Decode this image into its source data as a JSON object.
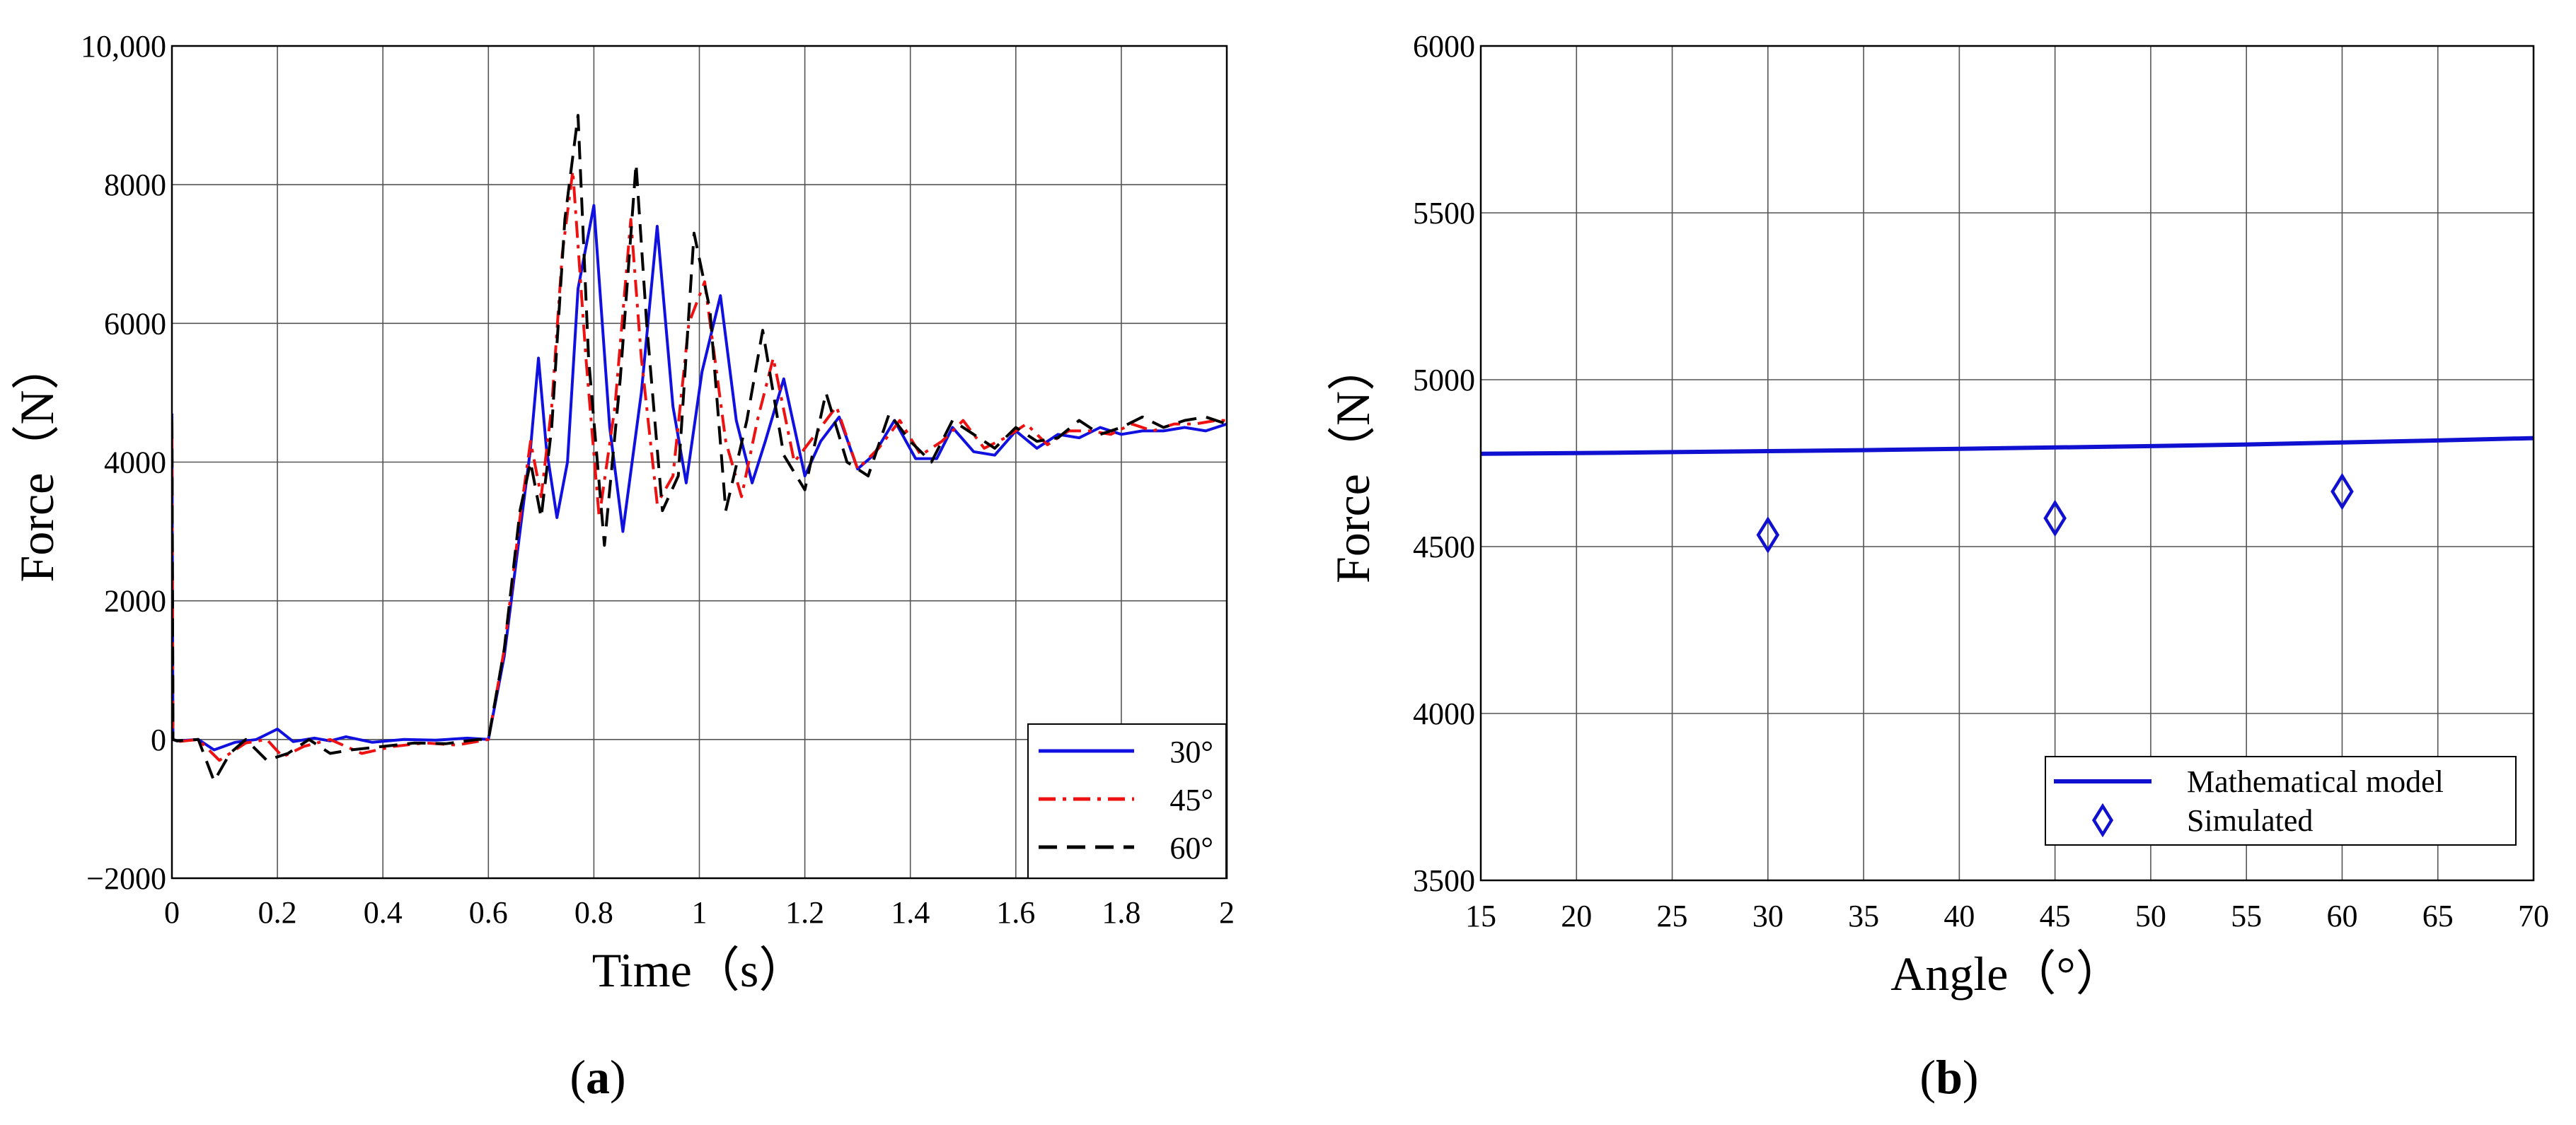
{
  "panel_labels": [
    {
      "open": "(",
      "letter": "a",
      "close": ")"
    },
    {
      "open": "(",
      "letter": "b",
      "close": ")"
    }
  ],
  "chart_data": [
    {
      "type": "line",
      "xlabel": "Time（s）",
      "ylabel": "Force（N）",
      "xlim": [
        0,
        2
      ],
      "ylim": [
        -2000,
        10000
      ],
      "x_ticks": [
        0,
        0.2,
        0.4,
        0.6,
        0.8,
        1,
        1.2,
        1.4,
        1.6,
        1.8,
        2
      ],
      "x_tick_labels": [
        "0",
        "0.2",
        "0.4",
        "0.6",
        "0.8",
        "1",
        "1.2",
        "1.4",
        "1.6",
        "1.8",
        "2"
      ],
      "y_ticks": [
        -2000,
        0,
        2000,
        4000,
        6000,
        8000,
        10000
      ],
      "y_tick_labels": [
        "−2000",
        "0",
        "2000",
        "4000",
        "6000",
        "8000",
        "10,000"
      ],
      "grid": true,
      "legend_position": "bottom-right",
      "series": [
        {
          "name": "30°",
          "color": "#1010e0",
          "dash": "solid",
          "x": [
            0,
            0.002,
            0.01,
            0.05,
            0.08,
            0.12,
            0.16,
            0.2,
            0.23,
            0.27,
            0.3,
            0.33,
            0.38,
            0.44,
            0.5,
            0.56,
            0.6,
            0.63,
            0.66,
            0.68,
            0.695,
            0.71,
            0.73,
            0.75,
            0.77,
            0.8,
            0.83,
            0.855,
            0.89,
            0.92,
            0.95,
            0.975,
            1.005,
            1.04,
            1.07,
            1.1,
            1.125,
            1.16,
            1.2,
            1.23,
            1.265,
            1.3,
            1.33,
            1.37,
            1.41,
            1.45,
            1.48,
            1.52,
            1.56,
            1.6,
            1.64,
            1.68,
            1.72,
            1.76,
            1.8,
            1.84,
            1.88,
            1.92,
            1.96,
            2.0
          ],
          "y": [
            4700,
            0,
            -20,
            0,
            -150,
            -40,
            0,
            150,
            -30,
            20,
            -20,
            40,
            -40,
            0,
            -10,
            20,
            0,
            1200,
            3000,
            4200,
            5500,
            4200,
            3200,
            4000,
            6500,
            7700,
            4500,
            3000,
            5000,
            7400,
            4800,
            3700,
            5300,
            6400,
            4600,
            3700,
            4300,
            5200,
            3800,
            4300,
            4650,
            3900,
            4100,
            4600,
            4050,
            4050,
            4500,
            4150,
            4100,
            4450,
            4200,
            4400,
            4350,
            4500,
            4400,
            4450,
            4450,
            4500,
            4450,
            4550
          ]
        },
        {
          "name": "45°",
          "color": "#ee1111",
          "dash": "dashdot",
          "x": [
            0,
            0.002,
            0.01,
            0.05,
            0.09,
            0.14,
            0.18,
            0.21,
            0.25,
            0.3,
            0.36,
            0.42,
            0.48,
            0.54,
            0.6,
            0.63,
            0.66,
            0.68,
            0.7,
            0.72,
            0.74,
            0.76,
            0.785,
            0.81,
            0.84,
            0.87,
            0.89,
            0.92,
            0.95,
            0.98,
            1.01,
            1.05,
            1.08,
            1.11,
            1.14,
            1.18,
            1.22,
            1.26,
            1.3,
            1.34,
            1.38,
            1.42,
            1.46,
            1.5,
            1.54,
            1.58,
            1.62,
            1.66,
            1.7,
            1.74,
            1.78,
            1.82,
            1.86,
            1.9,
            1.94,
            1.98,
            2.0
          ],
          "y": [
            4400,
            0,
            -30,
            0,
            -300,
            -50,
            0,
            -250,
            -100,
            0,
            -200,
            -100,
            -50,
            -80,
            0,
            1300,
            3200,
            4300,
            3500,
            4800,
            7000,
            8200,
            5500,
            3200,
            4800,
            7500,
            5500,
            3400,
            3800,
            6000,
            6600,
            4300,
            3500,
            4600,
            5500,
            4000,
            4400,
            4800,
            3900,
            4200,
            4600,
            4100,
            4300,
            4600,
            4200,
            4350,
            4550,
            4250,
            4450,
            4450,
            4400,
            4550,
            4450,
            4550,
            4550,
            4600,
            4600
          ]
        },
        {
          "name": "60°",
          "color": "#000000",
          "dash": "dashed",
          "x": [
            0,
            0.002,
            0.01,
            0.05,
            0.08,
            0.11,
            0.14,
            0.18,
            0.22,
            0.26,
            0.3,
            0.34,
            0.4,
            0.46,
            0.52,
            0.58,
            0.6,
            0.63,
            0.66,
            0.68,
            0.7,
            0.72,
            0.745,
            0.77,
            0.79,
            0.82,
            0.85,
            0.88,
            0.9,
            0.93,
            0.96,
            0.99,
            1.02,
            1.05,
            1.09,
            1.12,
            1.16,
            1.2,
            1.24,
            1.28,
            1.32,
            1.36,
            1.4,
            1.44,
            1.48,
            1.52,
            1.56,
            1.6,
            1.64,
            1.68,
            1.72,
            1.76,
            1.8,
            1.84,
            1.88,
            1.92,
            1.96,
            2.0
          ],
          "y": [
            4600,
            0,
            -20,
            0,
            -600,
            -200,
            0,
            -300,
            -200,
            0,
            -200,
            -150,
            -100,
            -50,
            -60,
            0,
            0,
            1300,
            3300,
            4000,
            3200,
            4500,
            7500,
            9000,
            5500,
            2800,
            5200,
            8300,
            6000,
            3300,
            3800,
            7300,
            6200,
            3300,
            4600,
            5900,
            4100,
            3600,
            5000,
            4000,
            3800,
            4700,
            4300,
            4000,
            4600,
            4400,
            4200,
            4500,
            4300,
            4350,
            4600,
            4400,
            4500,
            4650,
            4500,
            4600,
            4650,
            4550
          ]
        }
      ]
    },
    {
      "type": "line",
      "xlabel": "Angle（°）",
      "ylabel": "Force（N）",
      "xlim": [
        15,
        70
      ],
      "ylim": [
        3500,
        6000
      ],
      "x_ticks": [
        15,
        20,
        25,
        30,
        35,
        40,
        45,
        50,
        55,
        60,
        65,
        70
      ],
      "x_tick_labels": [
        "15",
        "20",
        "25",
        "30",
        "35",
        "40",
        "45",
        "50",
        "55",
        "60",
        "65",
        "70"
      ],
      "y_ticks": [
        3500,
        4000,
        4500,
        5000,
        5500,
        6000
      ],
      "y_tick_labels": [
        "3500",
        "4000",
        "4500",
        "5000",
        "5500",
        "6000"
      ],
      "grid": true,
      "legend_position": "bottom-right",
      "series": [
        {
          "name": "Mathematical model",
          "type": "line",
          "color": "#1010d0",
          "dash": "solid",
          "x": [
            15,
            20,
            25,
            30,
            35,
            40,
            45,
            50,
            55,
            60,
            65,
            70
          ],
          "y": [
            4778,
            4780,
            4783,
            4786,
            4789,
            4793,
            4797,
            4801,
            4806,
            4812,
            4818,
            4825
          ]
        },
        {
          "name": "Simulated",
          "type": "scatter",
          "marker": "diamond",
          "color": "#1010d0",
          "x": [
            30,
            45,
            60
          ],
          "y": [
            4535,
            4585,
            4665
          ]
        }
      ]
    }
  ]
}
